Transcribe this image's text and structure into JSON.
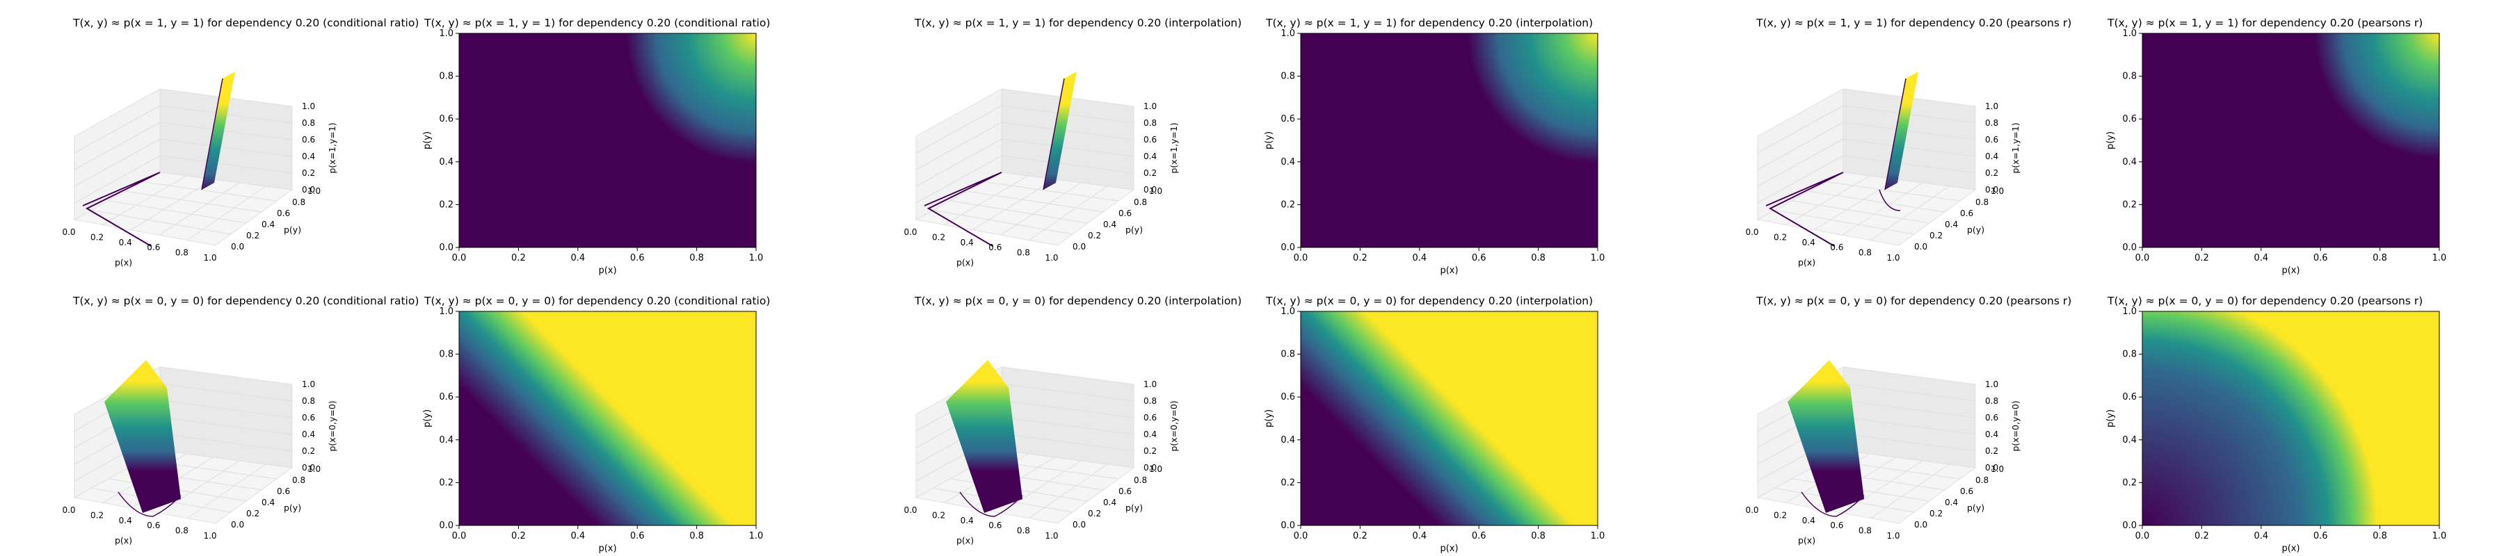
{
  "colors": {
    "viridis_low": "#440154",
    "viridis_mid": "#21918c",
    "viridis_high": "#fde725",
    "pane_grey": "#f2f2f2",
    "grid": "#dedede"
  },
  "axis": {
    "xlabel": "p(x)",
    "ylabel": "p(y)",
    "ticks": [
      "0.0",
      "0.2",
      "0.4",
      "0.6",
      "0.8",
      "1.0"
    ],
    "ticks3d": [
      "0.0",
      "0.2",
      "0.4",
      "0.6",
      "0.8",
      "1.0"
    ]
  },
  "chart_data": [
    {
      "type": "surface3d",
      "title": "T(x, y) ≈ p(x = 1, y = 1) for dependency 0.20 (conditional ratio)",
      "xlabel": "p(x)",
      "ylabel": "p(y)",
      "zlabel": "p(x=1,y=1)",
      "xlim": [
        0,
        1
      ],
      "ylim": [
        0,
        1
      ],
      "zlim": [
        0,
        1
      ],
      "dependency": 0.2,
      "method": "conditional ratio",
      "target": "p(x=1,y=1)"
    },
    {
      "type": "heatmap",
      "title": "T(x, y) ≈ p(x = 1, y = 1) for dependency 0.20 (conditional ratio)",
      "xlabel": "p(x)",
      "ylabel": "p(y)",
      "xlim": [
        0,
        1
      ],
      "ylim": [
        0,
        1
      ],
      "dependency": 0.2,
      "method": "conditional ratio",
      "target": "p(x=1,y=1)"
    },
    {
      "type": "surface3d",
      "title": "T(x, y) ≈ p(x = 1, y = 1) for dependency 0.20 (interpolation)",
      "xlabel": "p(x)",
      "ylabel": "p(y)",
      "zlabel": "p(x=1,y=1)",
      "xlim": [
        0,
        1
      ],
      "ylim": [
        0,
        1
      ],
      "zlim": [
        0,
        1
      ],
      "dependency": 0.2,
      "method": "interpolation",
      "target": "p(x=1,y=1)"
    },
    {
      "type": "heatmap",
      "title": "T(x, y) ≈ p(x = 1, y = 1) for dependency 0.20 (interpolation)",
      "xlabel": "p(x)",
      "ylabel": "p(y)",
      "xlim": [
        0,
        1
      ],
      "ylim": [
        0,
        1
      ],
      "dependency": 0.2,
      "method": "interpolation",
      "target": "p(x=1,y=1)"
    },
    {
      "type": "surface3d",
      "title": "T(x, y) ≈ p(x = 1, y = 1) for dependency 0.20 (pearsons r)",
      "xlabel": "p(x)",
      "ylabel": "p(y)",
      "zlabel": "p(x=1,y=1)",
      "xlim": [
        0,
        1
      ],
      "ylim": [
        0,
        1
      ],
      "zlim": [
        0,
        1
      ],
      "dependency": 0.2,
      "method": "pearsons r",
      "target": "p(x=1,y=1)"
    },
    {
      "type": "heatmap",
      "title": "T(x, y) ≈ p(x = 1, y = 1) for dependency 0.20 (pearsons r)",
      "xlabel": "p(x)",
      "ylabel": "p(y)",
      "xlim": [
        0,
        1
      ],
      "ylim": [
        0,
        1
      ],
      "dependency": 0.2,
      "method": "pearsons r",
      "target": "p(x=1,y=1)"
    },
    {
      "type": "surface3d",
      "title": "T(x, y) ≈ p(x = 0, y = 0) for dependency 0.20 (conditional ratio)",
      "xlabel": "p(x)",
      "ylabel": "p(y)",
      "zlabel": "p(x=0,y=0)",
      "xlim": [
        0,
        1
      ],
      "ylim": [
        0,
        1
      ],
      "zlim": [
        0,
        1
      ],
      "dependency": 0.2,
      "method": "conditional ratio",
      "target": "p(x=0,y=0)"
    },
    {
      "type": "heatmap",
      "title": "T(x, y) ≈ p(x = 0, y = 0) for dependency 0.20 (conditional ratio)",
      "xlabel": "p(x)",
      "ylabel": "p(y)",
      "xlim": [
        0,
        1
      ],
      "ylim": [
        0,
        1
      ],
      "dependency": 0.2,
      "method": "conditional ratio",
      "target": "p(x=0,y=0)"
    },
    {
      "type": "surface3d",
      "title": "T(x, y) ≈ p(x = 0, y = 0) for dependency 0.20 (interpolation)",
      "xlabel": "p(x)",
      "ylabel": "p(y)",
      "zlabel": "p(x=0,y=0)",
      "xlim": [
        0,
        1
      ],
      "ylim": [
        0,
        1
      ],
      "zlim": [
        0,
        1
      ],
      "dependency": 0.2,
      "method": "interpolation",
      "target": "p(x=0,y=0)"
    },
    {
      "type": "heatmap",
      "title": "T(x, y) ≈ p(x = 0, y = 0) for dependency 0.20 (interpolation)",
      "xlabel": "p(x)",
      "ylabel": "p(y)",
      "xlim": [
        0,
        1
      ],
      "ylim": [
        0,
        1
      ],
      "dependency": 0.2,
      "method": "interpolation",
      "target": "p(x=0,y=0)"
    },
    {
      "type": "surface3d",
      "title": "T(x, y) ≈ p(x = 0, y = 0) for dependency 0.20 (pearsons r)",
      "xlabel": "p(x)",
      "ylabel": "p(y)",
      "zlabel": "p(x=0,y=0)",
      "xlim": [
        0,
        1
      ],
      "ylim": [
        0,
        1
      ],
      "zlim": [
        0,
        1
      ],
      "dependency": 0.2,
      "method": "pearsons r",
      "target": "p(x=0,y=0)"
    },
    {
      "type": "heatmap",
      "title": "T(x, y) ≈ p(x = 0, y = 0) for dependency 0.20 (pearsons r)",
      "xlabel": "p(x)",
      "ylabel": "p(y)",
      "xlim": [
        0,
        1
      ],
      "ylim": [
        0,
        1
      ],
      "dependency": 0.2,
      "method": "pearsons r",
      "target": "p(x=0,y=0)"
    }
  ]
}
